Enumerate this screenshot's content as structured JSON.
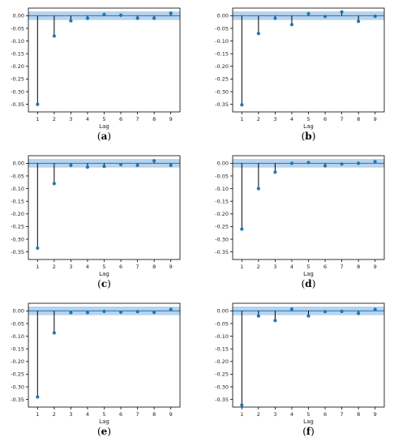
{
  "chart_data": [
    {
      "type": "scatter",
      "caption": {
        "open": "(",
        "letter": "a",
        "close": ")"
      },
      "xlabel": "Lag",
      "x": [
        1,
        2,
        3,
        4,
        5,
        6,
        7,
        8,
        9
      ],
      "values": [
        -0.35,
        -0.08,
        -0.02,
        -0.01,
        0.005,
        0.002,
        -0.01,
        -0.01,
        0.01
      ],
      "ylim": [
        -0.38,
        0.03
      ],
      "yticks": [
        "0.00",
        "-0.05",
        "-0.10",
        "-0.15",
        "-0.20",
        "-0.25",
        "-0.30",
        "-0.35"
      ],
      "xticks": [
        "1",
        "2",
        "3",
        "4",
        "5",
        "6",
        "7",
        "8",
        "9"
      ],
      "confidence_band": 0.017
    },
    {
      "type": "scatter",
      "caption": {
        "open": "(",
        "letter": "b",
        "close": ")"
      },
      "xlabel": "Lag",
      "x": [
        1,
        2,
        3,
        4,
        5,
        6,
        7,
        8,
        9
      ],
      "values": [
        -0.352,
        -0.07,
        -0.01,
        -0.035,
        0.008,
        -0.003,
        0.015,
        -0.022,
        -0.002
      ],
      "ylim": [
        -0.38,
        0.03
      ],
      "yticks": [
        "0.00",
        "-0.05",
        "-0.10",
        "-0.15",
        "-0.20",
        "-0.25",
        "-0.30",
        "-0.35"
      ],
      "xticks": [
        "1",
        "2",
        "3",
        "4",
        "5",
        "6",
        "7",
        "8",
        "9"
      ],
      "confidence_band": 0.017
    },
    {
      "type": "scatter",
      "caption": {
        "open": "(",
        "letter": "c",
        "close": ")"
      },
      "xlabel": "Lag",
      "x": [
        1,
        2,
        3,
        4,
        5,
        6,
        7,
        8,
        9
      ],
      "values": [
        -0.335,
        -0.08,
        -0.008,
        -0.015,
        -0.012,
        -0.005,
        -0.008,
        0.01,
        -0.008
      ],
      "ylim": [
        -0.38,
        0.03
      ],
      "yticks": [
        "0.00",
        "-0.05",
        "-0.10",
        "-0.15",
        "-0.20",
        "-0.25",
        "-0.30",
        "-0.35"
      ],
      "xticks": [
        "1",
        "2",
        "3",
        "4",
        "5",
        "6",
        "7",
        "8",
        "9"
      ],
      "confidence_band": 0.017
    },
    {
      "type": "scatter",
      "caption": {
        "open": "(",
        "letter": "d",
        "close": ")"
      },
      "xlabel": "Lag",
      "x": [
        1,
        2,
        3,
        4,
        5,
        6,
        7,
        8,
        9
      ],
      "values": [
        -0.26,
        -0.1,
        -0.035,
        0.0,
        0.003,
        -0.01,
        -0.003,
        0.0,
        0.007
      ],
      "ylim": [
        -0.38,
        0.03
      ],
      "yticks": [
        "0.00",
        "-0.05",
        "-0.10",
        "-0.15",
        "-0.20",
        "-0.25",
        "-0.30",
        "-0.35"
      ],
      "xticks": [
        "1",
        "2",
        "3",
        "4",
        "5",
        "6",
        "7",
        "8",
        "9"
      ],
      "confidence_band": 0.017
    },
    {
      "type": "scatter",
      "caption": {
        "open": "(",
        "letter": "e",
        "close": ")"
      },
      "xlabel": "Lag",
      "x": [
        1,
        2,
        3,
        4,
        5,
        6,
        7,
        8,
        9
      ],
      "values": [
        -0.34,
        -0.087,
        -0.007,
        -0.007,
        -0.002,
        -0.005,
        -0.003,
        -0.006,
        0.006
      ],
      "ylim": [
        -0.38,
        0.03
      ],
      "yticks": [
        "0.00",
        "-0.05",
        "-0.10",
        "-0.15",
        "-0.20",
        "-0.25",
        "-0.30",
        "-0.35"
      ],
      "xticks": [
        "1",
        "2",
        "3",
        "4",
        "5",
        "6",
        "7",
        "8",
        "9"
      ],
      "confidence_band": 0.017
    },
    {
      "type": "scatter",
      "caption": {
        "open": "(",
        "letter": "f",
        "close": ")"
      },
      "xlabel": "Lag",
      "x": [
        1,
        2,
        3,
        4,
        5,
        6,
        7,
        8,
        9
      ],
      "values": [
        -0.372,
        -0.02,
        -0.038,
        0.007,
        -0.02,
        -0.003,
        -0.002,
        -0.01,
        0.006
      ],
      "ylim": [
        -0.38,
        0.03
      ],
      "yticks": [
        "0.00",
        "-0.05",
        "-0.10",
        "-0.15",
        "-0.20",
        "-0.25",
        "-0.30",
        "-0.35"
      ],
      "xticks": [
        "1",
        "2",
        "3",
        "4",
        "5",
        "6",
        "7",
        "8",
        "9"
      ],
      "confidence_band": 0.017
    }
  ],
  "colors": {
    "marker": "#1f77b4",
    "stem": "#000000",
    "zero_line": "#1f77b4",
    "band": "#a6c8e8",
    "axes": "#000000"
  }
}
